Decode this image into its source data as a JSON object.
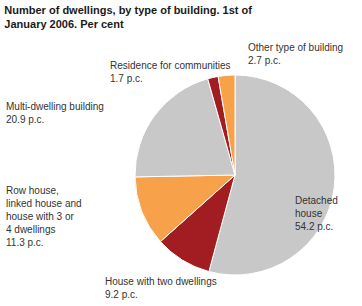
{
  "chart_data": {
    "type": "pie",
    "title": "Number of dwellings, by type of building. 1st of January 2006. Per cent",
    "categories": [
      "Detached house",
      "House with two dwellings",
      "Row house, linked house and house with 3 or 4 dwellings",
      "Multi-dwelling building",
      "Residence for communities",
      "Other type of building"
    ],
    "values": [
      54.2,
      9.2,
      11.3,
      20.9,
      1.7,
      2.7
    ],
    "value_labels": [
      "54.2 p.c.",
      "9.2 p.c.",
      "11.3 p.c.",
      "20.9 p.c.",
      "1.7 p.c.",
      "2.7 p.c."
    ],
    "colors": [
      "#c8c8c8",
      "#a11d21",
      "#f7a24b",
      "#c8c8c8",
      "#a11d21",
      "#f7a24b"
    ],
    "data_labels": true
  }
}
